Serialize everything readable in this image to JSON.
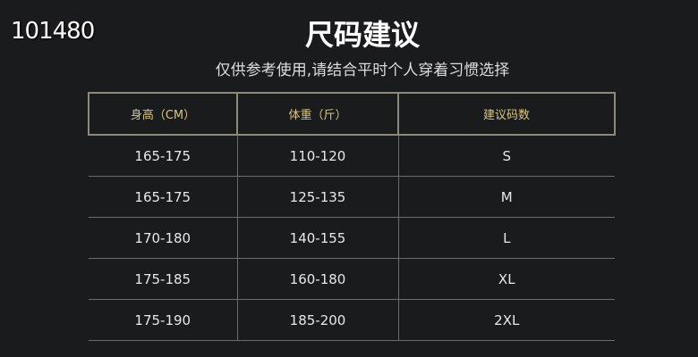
{
  "code": "101480",
  "title": "尺码建议",
  "subtitle": "仅供参考使用,请结合平时个人穿着习惯选择",
  "table": {
    "headers": [
      "身高（CM）",
      "体重（斤）",
      "建议码数"
    ],
    "rows": [
      [
        "165-175",
        "110-120",
        "S"
      ],
      [
        "165-175",
        "125-135",
        "M"
      ],
      [
        "170-180",
        "140-155",
        "L"
      ],
      [
        "175-185",
        "160-180",
        "XL"
      ],
      [
        "175-190",
        "185-200",
        "2XL"
      ]
    ]
  }
}
